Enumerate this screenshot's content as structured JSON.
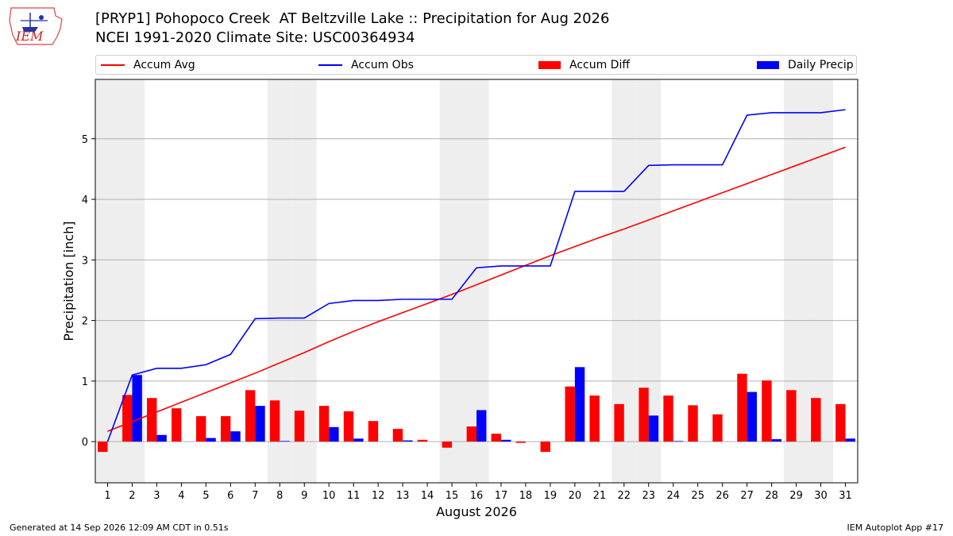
{
  "header": {
    "title_line1": "[PRYP1] Pohopoco Creek  AT Beltzville Lake :: Precipitation for Aug 2026",
    "title_line2": "NCEI 1991-2020 Climate Site: USC00364934",
    "logo_text": "IEM"
  },
  "legend": [
    {
      "label": "Accum Avg",
      "kind": "line",
      "color": "#ff0000"
    },
    {
      "label": "Accum Obs",
      "kind": "line",
      "color": "#0000ff"
    },
    {
      "label": "Accum Diff",
      "kind": "bar",
      "color": "#ff0000"
    },
    {
      "label": "Daily Precip",
      "kind": "bar",
      "color": "#0000ff"
    }
  ],
  "footer": {
    "left": "Generated at 14 Sep 2026 12:09 AM CDT in 0.51s",
    "right": "IEM Autoplot App #17"
  },
  "chart_data": {
    "type": "bar",
    "xlabel": "August 2026",
    "ylabel": "Precipitation [inch]",
    "ylim": [
      -0.68,
      5.98
    ],
    "yticks": [
      0,
      1,
      2,
      3,
      4,
      5
    ],
    "grid": true,
    "legend_position": "top",
    "days": [
      1,
      2,
      3,
      4,
      5,
      6,
      7,
      8,
      9,
      10,
      11,
      12,
      13,
      14,
      15,
      16,
      17,
      18,
      19,
      20,
      21,
      22,
      23,
      24,
      25,
      26,
      27,
      28,
      29,
      30,
      31
    ],
    "weekend_shaded_days": [
      1,
      2,
      8,
      9,
      15,
      16,
      22,
      23,
      29,
      30
    ],
    "series": [
      {
        "name": "Accum Avg",
        "type": "line",
        "color": "#ff0000",
        "values": [
          0.17,
          0.33,
          0.49,
          0.65,
          0.81,
          0.97,
          1.13,
          1.3,
          1.47,
          1.65,
          1.82,
          1.98,
          2.13,
          2.28,
          2.43,
          2.59,
          2.75,
          2.91,
          3.07,
          3.22,
          3.37,
          3.51,
          3.66,
          3.81,
          3.96,
          4.11,
          4.26,
          4.41,
          4.56,
          4.71,
          4.86
        ]
      },
      {
        "name": "Accum Obs",
        "type": "line",
        "color": "#0000ff",
        "values": [
          0.0,
          1.1,
          1.21,
          1.21,
          1.27,
          1.44,
          2.03,
          2.04,
          2.04,
          2.28,
          2.33,
          2.33,
          2.35,
          2.35,
          2.35,
          2.87,
          2.9,
          2.9,
          2.9,
          4.13,
          4.13,
          4.13,
          4.56,
          4.57,
          4.57,
          4.57,
          5.39,
          5.43,
          5.43,
          5.43,
          5.48
        ]
      },
      {
        "name": "Accum Diff",
        "type": "bar",
        "color": "#ff0000",
        "values": [
          -0.17,
          0.77,
          0.72,
          0.55,
          0.42,
          0.42,
          0.85,
          0.68,
          0.51,
          0.59,
          0.5,
          0.34,
          0.21,
          0.03,
          -0.1,
          0.25,
          0.13,
          -0.02,
          -0.17,
          0.91,
          0.76,
          0.62,
          0.89,
          0.76,
          0.6,
          0.45,
          1.12,
          1.01,
          0.85,
          0.72,
          0.62
        ]
      },
      {
        "name": "Daily Precip",
        "type": "bar",
        "color": "#0000ff",
        "values": [
          0.0,
          1.1,
          0.11,
          0.0,
          0.06,
          0.17,
          0.59,
          0.01,
          0.0,
          0.24,
          0.05,
          0.0,
          0.02,
          0.0,
          0.0,
          0.52,
          0.03,
          0.0,
          0.0,
          1.23,
          0.0,
          0.0,
          0.43,
          0.01,
          0.0,
          0.0,
          0.82,
          0.04,
          0.0,
          0.0,
          0.05
        ]
      }
    ]
  }
}
